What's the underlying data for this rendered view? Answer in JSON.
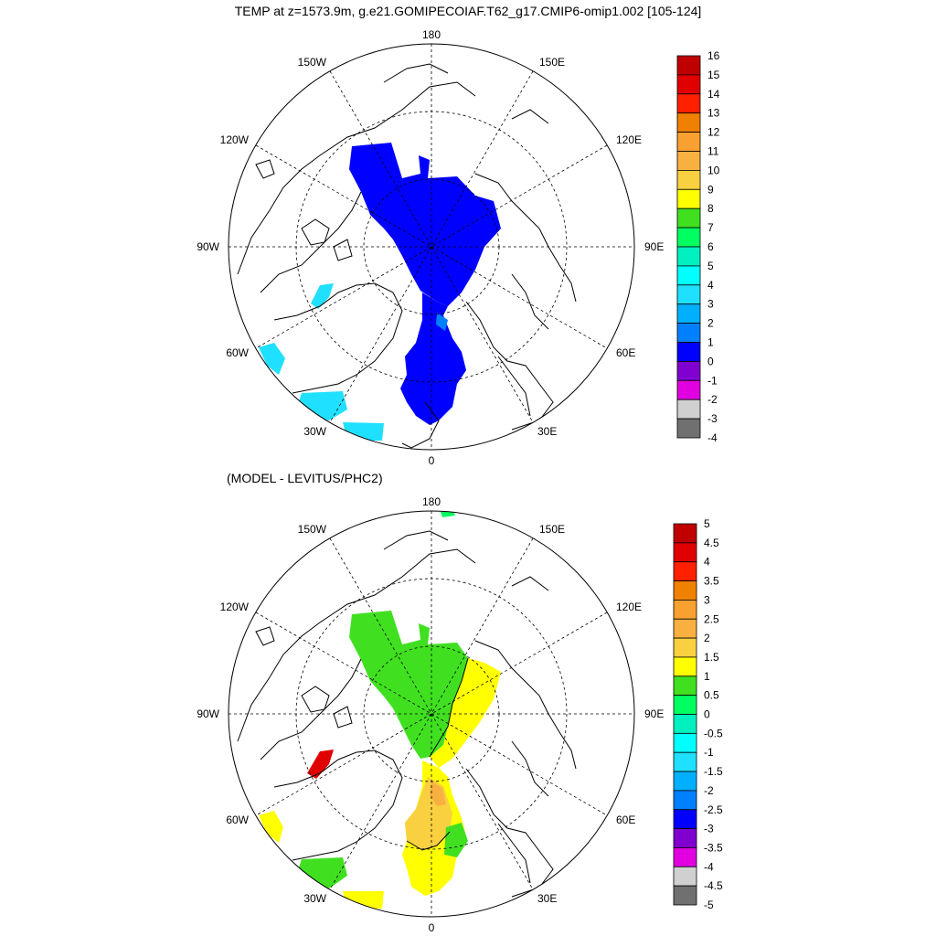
{
  "title": "TEMP at z=1573.9m, g.e21.GOMIPECOIAF.T62_g17.CMIP6-omip1.002 [105-124]",
  "subtitle": "(MODEL - LEVITUS/PHC2)",
  "lon_labels": {
    "top": "180",
    "bottom": "0",
    "left": "90W",
    "right": "90E",
    "upper_left": "150W",
    "upper_right": "150E",
    "upper_left_mid": "120W",
    "upper_right_mid": "120E",
    "lower_left_mid": "60W",
    "lower_right_mid": "60E",
    "lower_left": "30W",
    "lower_right": "30E"
  },
  "colorbar_top": {
    "labels": [
      "16",
      "15",
      "14",
      "13",
      "12",
      "11",
      "10",
      "9",
      "8",
      "7",
      "6",
      "5",
      "4",
      "3",
      "2",
      "1",
      "0",
      "-1",
      "-2",
      "-3",
      "-4"
    ],
    "colors": [
      "#c00000",
      "#e00000",
      "#ff2000",
      "#f08000",
      "#f8a030",
      "#f8b040",
      "#f8d040",
      "#ffff00",
      "#40e020",
      "#00ff60",
      "#00f0c0",
      "#00ffff",
      "#20e0ff",
      "#00b0ff",
      "#0080ff",
      "#0000ff",
      "#8000d0",
      "#e000e0",
      "#d0d0d0",
      "#707070"
    ]
  },
  "colorbar_bottom": {
    "labels": [
      "5",
      "4.5",
      "4",
      "3.5",
      "3",
      "2.5",
      "2",
      "1.5",
      "1",
      "0.5",
      "0",
      "-0.5",
      "-1",
      "-1.5",
      "-2",
      "-2.5",
      "-3",
      "-3.5",
      "-4",
      "-4.5",
      "-5"
    ],
    "colors": [
      "#c00000",
      "#e00000",
      "#ff2000",
      "#f08000",
      "#f8a030",
      "#f8b040",
      "#f8d040",
      "#ffff00",
      "#40e020",
      "#00ff60",
      "#00f0c0",
      "#00ffff",
      "#20e0ff",
      "#00b0ff",
      "#0080ff",
      "#0000ff",
      "#8000d0",
      "#e000e0",
      "#d0d0d0",
      "#707070"
    ]
  },
  "map_colors": {
    "deep_blue": "#0000ff",
    "light_blue": "#20e0ff",
    "mid_blue": "#0080ff",
    "green": "#40e020",
    "bright_green": "#00ff60",
    "yellow": "#ffff00",
    "orange": "#f8d040",
    "red": "#e00000"
  }
}
